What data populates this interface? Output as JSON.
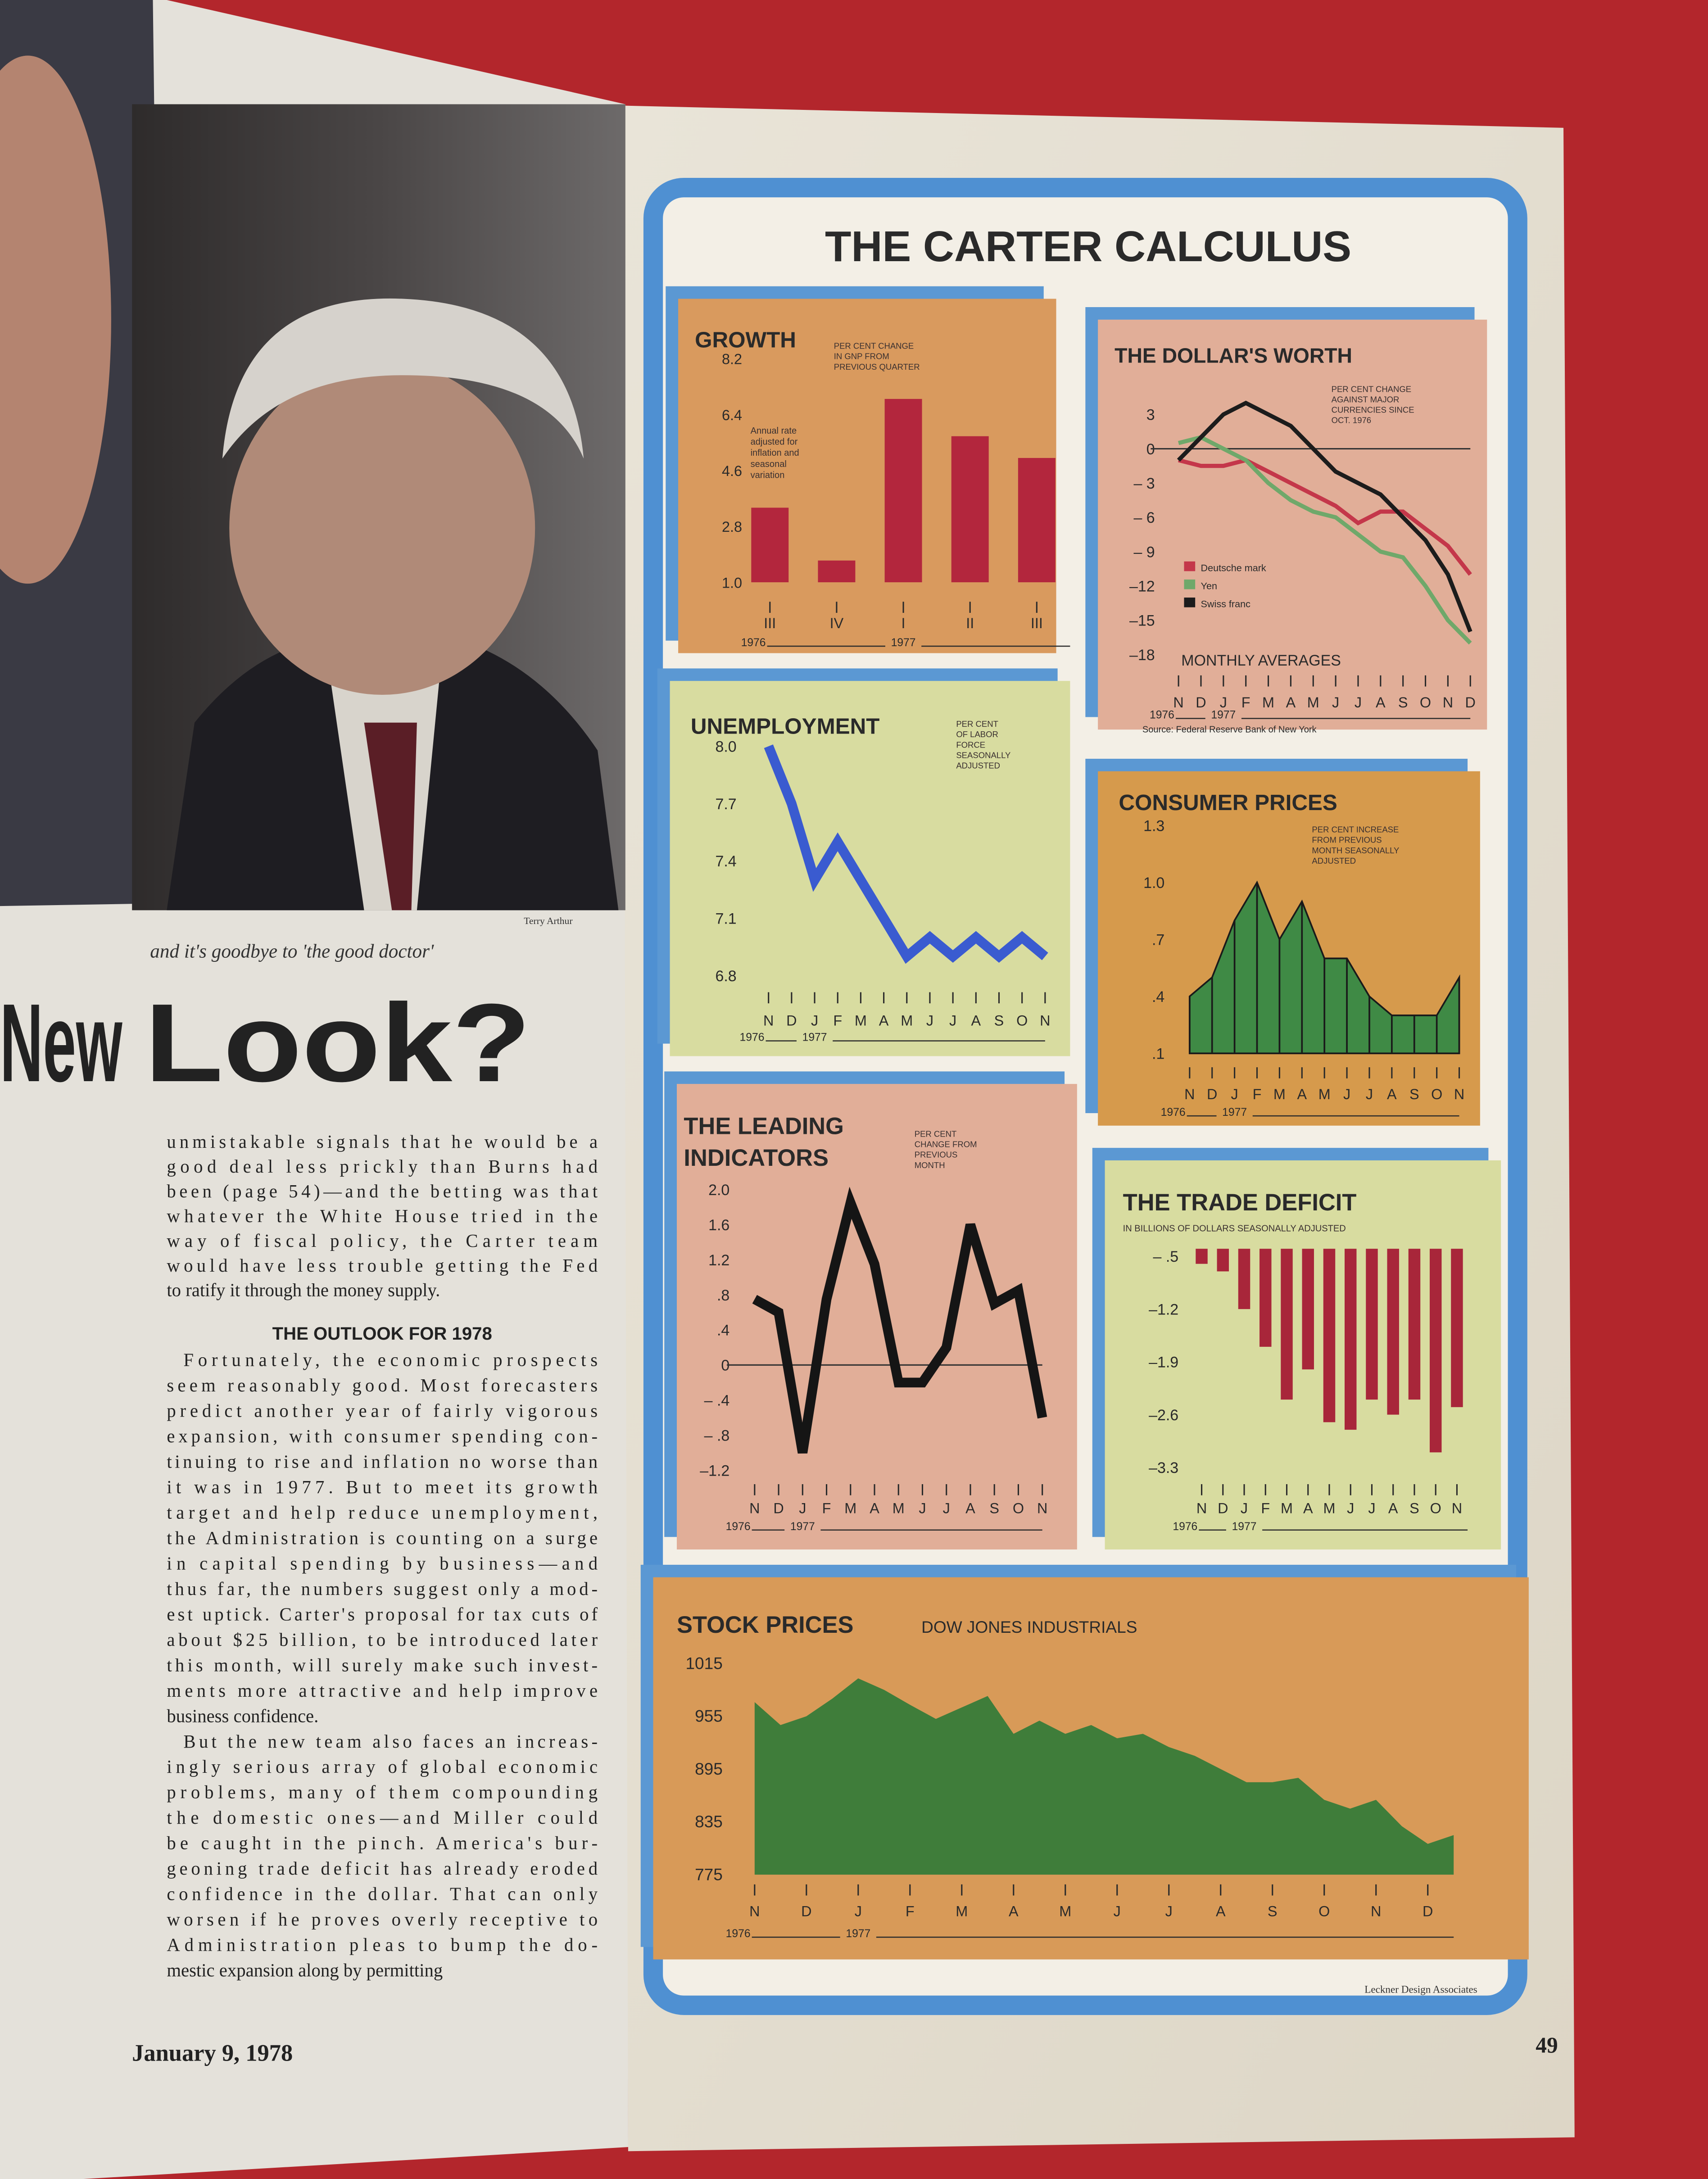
{
  "chart_data": [
    {
      "type": "bar",
      "title": "GROWTH",
      "note": [
        "PER CENT CHANGE",
        "IN GNP FROM",
        "PREVIOUS QUARTER"
      ],
      "note2": [
        "Annual rate",
        "adjusted for",
        "inflation and",
        "seasonal",
        "variation"
      ],
      "categories": [
        "III",
        "IV",
        "I",
        "II",
        "III"
      ],
      "values": [
        3.4,
        1.7,
        6.9,
        5.7,
        5.0
      ],
      "color": "#b3263d",
      "ylim": [
        1.0,
        8.2
      ],
      "yticks": [
        8.2,
        6.4,
        4.6,
        2.8,
        {
          "value": 1,
          "label": "1.0"
        }
      ],
      "year_labels": [
        "1976",
        "1977"
      ]
    },
    {
      "type": "line",
      "title": "THE DOLLAR'S WORTH",
      "note": [
        "PER CENT CHANGE",
        "AGAINST MAJOR",
        "CURRENCIES SINCE",
        "OCT. 1976"
      ],
      "annotation": "MONTHLY AVERAGES",
      "source": "Source: Federal Reserve Bank of New York",
      "categories": [
        "N",
        "D",
        "J",
        "F",
        "M",
        "A",
        "M",
        "J",
        "J",
        "A",
        "S",
        "O",
        "N",
        "D"
      ],
      "series": [
        {
          "name": "Deutsche mark",
          "color": "#c4374a",
          "values": [
            -1,
            -1.5,
            -1.5,
            -1,
            -2,
            -3,
            -4,
            -5,
            -6.5,
            -5.5,
            -5.5,
            -7,
            -8.5,
            -11
          ]
        },
        {
          "name": "Yen",
          "color": "#6fa86a",
          "values": [
            0.5,
            1,
            0,
            -1,
            -3,
            -4.5,
            -5.5,
            -6,
            -7.5,
            -9,
            -9.5,
            -12,
            -15,
            -17
          ]
        },
        {
          "name": "Swiss franc",
          "color": "#1c1c1c",
          "values": [
            -1,
            1,
            3,
            4,
            3,
            2,
            0,
            -2,
            -3,
            -4,
            -6,
            -8,
            -11,
            -16
          ]
        }
      ],
      "ylim": [
        -18,
        4
      ],
      "yticks": [
        3,
        0,
        {
          "value": -3,
          "label": "– 3"
        },
        {
          "value": -6,
          "label": "– 6"
        },
        {
          "value": -9,
          "label": "– 9"
        },
        {
          "value": -12,
          "label": "–12"
        },
        {
          "value": -15,
          "label": "–15"
        },
        {
          "value": -18,
          "label": "–18"
        }
      ],
      "zero_line": true,
      "legend": "bottom-left",
      "year_labels": [
        "1976",
        "1977"
      ]
    },
    {
      "type": "line",
      "title": "UNEMPLOYMENT",
      "note": [
        "PER CENT",
        "OF LABOR",
        "FORCE",
        "SEASONALLY",
        "ADJUSTED"
      ],
      "categories": [
        "N",
        "D",
        "J",
        "F",
        "M",
        "A",
        "M",
        "J",
        "J",
        "A",
        "S",
        "O",
        "N"
      ],
      "values": [
        8.0,
        7.7,
        7.3,
        7.5,
        7.3,
        7.1,
        6.9,
        7.0,
        6.9,
        7.0,
        6.9,
        7.0,
        6.9
      ],
      "color": "#3a5bd0",
      "ylim": [
        6.8,
        8.0
      ],
      "yticks": [
        {
          "value": 8,
          "label": "8.0"
        },
        7.7,
        7.4,
        7.1,
        6.8
      ],
      "year_labels": [
        "1976",
        "1977"
      ]
    },
    {
      "type": "area",
      "title": "CONSUMER PRICES",
      "note": [
        "PER CENT INCREASE",
        "FROM PREVIOUS",
        "MONTH SEASONALLY",
        "ADJUSTED"
      ],
      "categories": [
        "N",
        "D",
        "J",
        "F",
        "M",
        "A",
        "M",
        "J",
        "J",
        "A",
        "S",
        "O",
        "N"
      ],
      "values": [
        0.4,
        0.5,
        0.8,
        1.0,
        0.7,
        0.9,
        0.6,
        0.6,
        0.4,
        0.3,
        0.3,
        0.3,
        0.5
      ],
      "color": "#3f8a45",
      "ylim": [
        0.1,
        1.3
      ],
      "yticks": [
        1.3,
        {
          "value": 1,
          "label": "1.0"
        },
        {
          "value": 0.7,
          "label": ".7"
        },
        {
          "value": 0.4,
          "label": ".4"
        },
        {
          "value": 0.1,
          "label": ".1"
        }
      ],
      "year_labels": [
        "1976",
        "1977"
      ]
    },
    {
      "type": "line",
      "title": [
        "THE LEADING",
        "INDICATORS"
      ],
      "note": [
        "PER CENT",
        "CHANGE FROM",
        "PREVIOUS",
        "MONTH"
      ],
      "categories": [
        "N",
        "D",
        "J",
        "F",
        "M",
        "A",
        "M",
        "J",
        "J",
        "A",
        "S",
        "O",
        "N"
      ],
      "values": [
        0.75,
        0.6,
        -1.0,
        0.75,
        1.85,
        1.15,
        -0.2,
        -0.2,
        0.2,
        1.6,
        0.7,
        0.85,
        -0.6
      ],
      "color": "#151515",
      "ylim": [
        -1.2,
        2.0
      ],
      "yticks": [
        {
          "value": 2,
          "label": "2.0"
        },
        1.6,
        1.2,
        {
          "value": 0.8,
          "label": ".8"
        },
        {
          "value": 0.4,
          "label": ".4"
        },
        0,
        {
          "value": -0.4,
          "label": "– .4"
        },
        {
          "value": -0.8,
          "label": "– .8"
        },
        {
          "value": -1.2,
          "label": "–1.2"
        }
      ],
      "zero_line": true,
      "year_labels": [
        "1976",
        "1977"
      ]
    },
    {
      "type": "bar",
      "title": "THE TRADE DEFICIT",
      "note": [
        "IN BILLIONS OF DOLLARS SEASONALLY ADJUSTED"
      ],
      "categories": [
        "N",
        "D",
        "J",
        "F",
        "M",
        "A",
        "M",
        "J",
        "J",
        "A",
        "S",
        "O",
        "N"
      ],
      "values": [
        -0.6,
        -0.7,
        -1.2,
        -1.7,
        -2.4,
        -2.0,
        -2.7,
        -2.8,
        -2.4,
        -2.6,
        -2.4,
        -3.1,
        -2.5
      ],
      "color": "#a8263a",
      "ylim": [
        -3.4,
        -0.4
      ],
      "yticks": [
        {
          "value": -0.5,
          "label": "– .5"
        },
        {
          "value": -1.2,
          "label": "–1.2"
        },
        {
          "value": -1.9,
          "label": "–1.9"
        },
        {
          "value": -2.6,
          "label": "–2.6"
        },
        {
          "value": -3.3,
          "label": "–3.3"
        }
      ],
      "year_labels": [
        "1976",
        "1977"
      ]
    },
    {
      "type": "area",
      "title": "STOCK PRICES",
      "subtitle": "DOW JONES INDUSTRIALS",
      "categories": [
        "N",
        null,
        "D",
        null,
        "J",
        null,
        "F",
        null,
        "M",
        null,
        "A",
        null,
        "M",
        null,
        "J",
        null,
        "J",
        null,
        "A",
        null,
        "S",
        null,
        "O",
        null,
        "N",
        null,
        "D",
        null
      ],
      "values": [
        971,
        945,
        955,
        975,
        998,
        985,
        968,
        952,
        965,
        978,
        935,
        950,
        935,
        945,
        930,
        935,
        920,
        910,
        895,
        880,
        880,
        885,
        860,
        850,
        860,
        830,
        810,
        820
      ],
      "color": "#3f7d3a",
      "ylim": [
        775,
        1015
      ],
      "yticks": [
        1015,
        955,
        895,
        835,
        775
      ],
      "year_labels": [
        "1976",
        "1977"
      ]
    }
  ],
  "graphic_title": "THE CARTER CALCULUS",
  "graphic_credit": "Leckner Design Associates",
  "photo_credit": "Terry Arthur",
  "caption": "and it's goodbye to 'the good doctor'",
  "headline": [
    "New",
    "Look?"
  ],
  "article": {
    "paragraphs": [
      [
        "unmistakable signals that he would be a",
        "good deal less prickly than Burns had",
        "been (page 54)—and the betting was that",
        "whatever the White House tried in the",
        "way of fiscal policy, the Carter team",
        "would have less trouble getting the Fed",
        "to ratify it through the money supply."
      ],
      [
        "Fortunately, the economic prospects",
        "seem reasonably good. Most forecasters",
        "predict another year of fairly vigorous",
        "expansion, with consumer spending con-",
        "tinuing to rise and inflation no worse than",
        "it was in 1977. But to meet its growth",
        "target and help reduce unemployment,",
        "the Administration is counting on a surge",
        "in capital spending by business—and",
        "thus far, the numbers suggest only a mod-",
        "est uptick. Carter's proposal for tax cuts of",
        "about $25 billion, to be introduced later",
        "this month, will surely make such invest-",
        "ments more attractive and help improve",
        "business confidence."
      ],
      [
        "But the new team also faces an increas-",
        "ingly serious array of global economic",
        "problems, many of them compounding",
        "the domestic ones—and Miller could",
        "be caught in the pinch. America's bur-",
        "geoning trade deficit has already eroded",
        "confidence in the dollar. That can only",
        "worsen if he proves overly receptive to",
        "Administration pleas to bump the do-",
        "mestic expansion along by permitting"
      ]
    ],
    "subhead": "THE OUTLOOK FOR 1978"
  },
  "footer": {
    "date": "January 9, 1978",
    "page": "49"
  }
}
